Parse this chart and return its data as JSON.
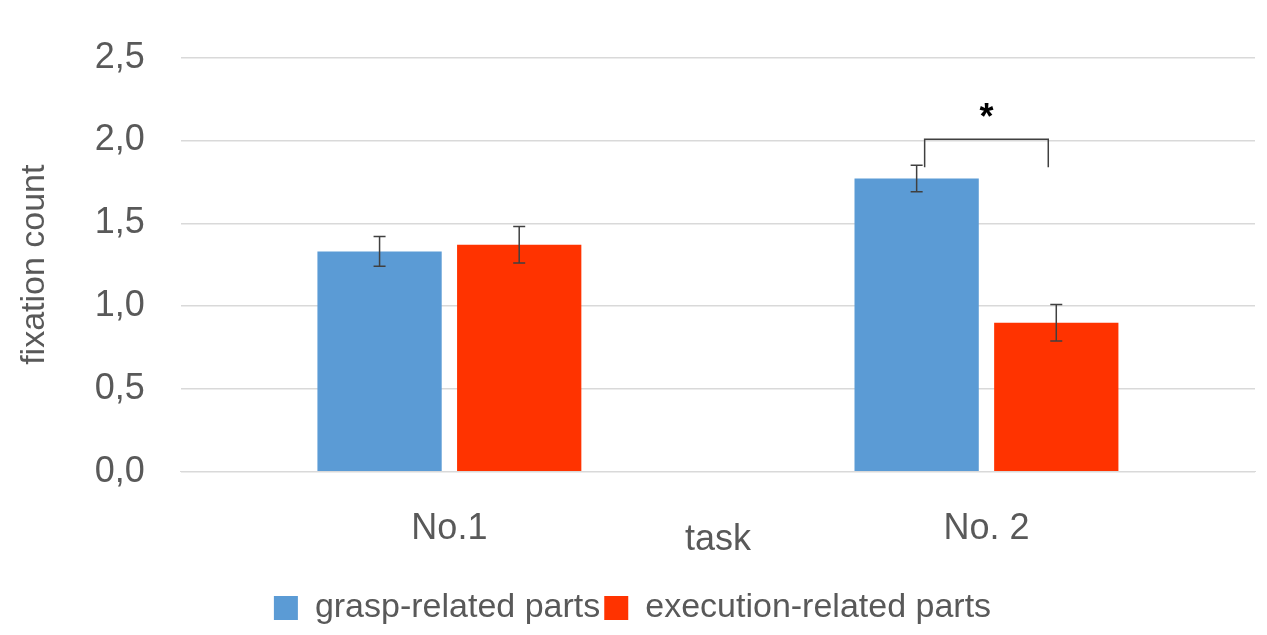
{
  "chart_data": {
    "type": "bar",
    "xlabel": "task",
    "ylabel": "fixation count",
    "categories": [
      "No.1",
      "No. 2"
    ],
    "series": [
      {
        "name": "grasp-related parts",
        "color": "#5b9bd5",
        "values": [
          1.33,
          1.77
        ],
        "errors": [
          0.09,
          0.08
        ]
      },
      {
        "name": "execution-related parts",
        "color": "#ff3300",
        "values": [
          1.37,
          0.9
        ],
        "errors": [
          0.11,
          0.11
        ]
      }
    ],
    "ylim": [
      0,
      2.5
    ],
    "yticks": [
      {
        "value": 0,
        "label": "0,0"
      },
      {
        "value": 0.5,
        "label": "0,5"
      },
      {
        "value": 1,
        "label": "1,0"
      },
      {
        "value": 1.5,
        "label": "1,5"
      },
      {
        "value": 2,
        "label": "2,0"
      },
      {
        "value": 2.5,
        "label": "2,5"
      }
    ],
    "grid": "y",
    "legend": "bottom",
    "annotations": [
      "*"
    ]
  }
}
